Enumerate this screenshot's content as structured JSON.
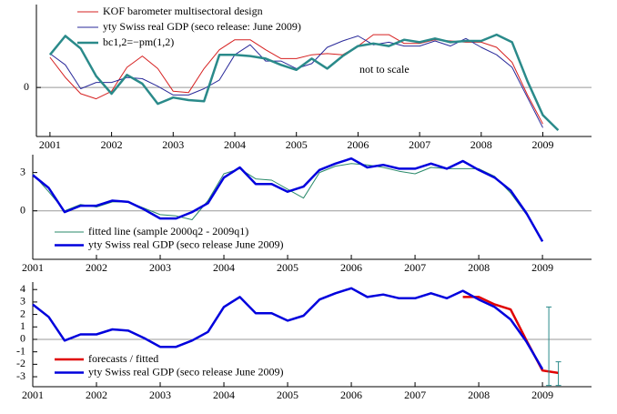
{
  "chart_data": [
    {
      "type": "line",
      "legend": "upper left",
      "zero_line": true,
      "annotation": "not to scale",
      "x": [
        2001,
        2001.25,
        2001.5,
        2001.75,
        2002,
        2002.25,
        2002.5,
        2002.75,
        2003,
        2003.25,
        2003.5,
        2003.75,
        2004,
        2004.25,
        2004.5,
        2004.75,
        2005,
        2005.25,
        2005.5,
        2005.75,
        2006,
        2006.25,
        2006.5,
        2006.75,
        2007,
        2007.25,
        2007.5,
        2007.75,
        2008,
        2008.25,
        2008.5,
        2008.75,
        2009,
        2009.25
      ],
      "series": [
        {
          "name": "KOF barometer multisectoral design",
          "color": "#d62020",
          "width": 1,
          "values": [
            2.4,
            0.8,
            -0.5,
            -0.9,
            -0.3,
            1.6,
            2.5,
            1.5,
            -0.3,
            -0.4,
            1.5,
            3.0,
            3.8,
            3.8,
            3.0,
            2.3,
            2.3,
            2.6,
            2.7,
            2.6,
            3.3,
            4.2,
            4.2,
            3.5,
            3.5,
            3.8,
            3.7,
            3.6,
            3.6,
            3.2,
            2.0,
            -0.6,
            -2.9,
            null
          ]
        },
        {
          "name": "yty Swiss real GDP (seco release: June 2009)",
          "color": "#2a2a9a",
          "width": 1,
          "values": [
            2.7,
            1.8,
            -0.1,
            0.4,
            0.4,
            0.8,
            0.7,
            0.1,
            -0.6,
            -0.6,
            -0.1,
            0.6,
            2.6,
            3.4,
            2.1,
            2.1,
            1.5,
            1.9,
            3.2,
            3.7,
            4.1,
            3.4,
            3.6,
            3.3,
            3.3,
            3.7,
            3.3,
            3.9,
            3.2,
            2.6,
            1.6,
            -0.8,
            -3.2,
            null
          ]
        },
        {
          "name": "bc1,2=−pm(1,2)",
          "color": "#2a8a8a",
          "width": 2.5,
          "values": [
            2.6,
            4.1,
            3.1,
            0.9,
            -0.5,
            1.0,
            0.3,
            -1.3,
            -0.8,
            -1.0,
            -1.1,
            2.6,
            2.6,
            2.5,
            2.3,
            1.8,
            1.4,
            2.3,
            1.5,
            2.5,
            3.3,
            3.5,
            3.3,
            3.8,
            3.6,
            3.9,
            3.6,
            3.7,
            3.7,
            4.2,
            3.6,
            0.5,
            -2.2,
            -3.4
          ]
        }
      ],
      "xlim": [
        2000.78,
        2009.79
      ],
      "ylim": [
        -3.9,
        6.6
      ],
      "xticks": [
        2001,
        2002,
        2003,
        2004,
        2005,
        2006,
        2007,
        2008,
        2009
      ],
      "yticks": [
        0
      ]
    },
    {
      "type": "line",
      "legend": "lower left",
      "zero_line": true,
      "x": [
        2001,
        2001.25,
        2001.5,
        2001.75,
        2002,
        2002.25,
        2002.5,
        2002.75,
        2003,
        2003.25,
        2003.5,
        2003.75,
        2004,
        2004.25,
        2004.5,
        2004.75,
        2005,
        2005.25,
        2005.5,
        2005.75,
        2006,
        2006.25,
        2006.5,
        2006.75,
        2007,
        2007.25,
        2007.5,
        2007.75,
        2008,
        2008.25,
        2008.5,
        2008.75,
        2009
      ],
      "series": [
        {
          "name": "fitted line (sample 2000q2 - 2009q1)",
          "color": "#2a8a6a",
          "width": 1,
          "values": [
            2.9,
            1.5,
            0,
            0.5,
            0.3,
            0.7,
            0.7,
            0.2,
            -0.3,
            -0.4,
            -0.7,
            0.8,
            2.9,
            3.3,
            2.5,
            2.4,
            1.7,
            1.0,
            3.0,
            3.5,
            3.7,
            3.6,
            3.4,
            3.1,
            2.9,
            3.4,
            3.3,
            3.3,
            3.3,
            2.7,
            1.4,
            -0.3,
            null
          ]
        },
        {
          "name": "yty Swiss real GDP (seco release June 2009)",
          "color": "#0000dd",
          "width": 2.5,
          "values": [
            2.8,
            1.8,
            -0.1,
            0.4,
            0.4,
            0.8,
            0.7,
            0.1,
            -0.6,
            -0.6,
            -0.1,
            0.6,
            2.6,
            3.4,
            2.1,
            2.1,
            1.5,
            1.9,
            3.2,
            3.7,
            4.1,
            3.4,
            3.6,
            3.3,
            3.3,
            3.7,
            3.3,
            3.9,
            3.2,
            2.6,
            1.6,
            -0.2,
            -2.4
          ]
        }
      ],
      "xlim": [
        2001,
        2009.77
      ],
      "ylim": [
        -3.8,
        4.4
      ],
      "xticks": [
        2001,
        2002,
        2003,
        2004,
        2005,
        2006,
        2007,
        2008,
        2009
      ],
      "yticks": [
        0,
        3
      ]
    },
    {
      "type": "line",
      "legend": "lower left",
      "zero_line": true,
      "x": [
        2001,
        2001.25,
        2001.5,
        2001.75,
        2002,
        2002.25,
        2002.5,
        2002.75,
        2003,
        2003.25,
        2003.5,
        2003.75,
        2004,
        2004.25,
        2004.5,
        2004.75,
        2005,
        2005.25,
        2005.5,
        2005.75,
        2006,
        2006.25,
        2006.5,
        2006.75,
        2007,
        2007.25,
        2007.5,
        2007.75,
        2008,
        2008.25,
        2008.5,
        2008.75,
        2009
      ],
      "series": [
        {
          "name": "forecasts / fitted",
          "color": "#e00000",
          "width": 2.5,
          "x": [
            2007.75,
            2008,
            2008.25,
            2008.5,
            2008.75,
            2009,
            2009.25
          ],
          "values": [
            3.4,
            3.4,
            2.8,
            2.4,
            -0.1,
            -2.5,
            -2.7
          ]
        },
        {
          "name": "yty Swiss real GDP (seco release June 2009)",
          "color": "#0000dd",
          "width": 2.5,
          "values": [
            2.8,
            1.8,
            -0.1,
            0.4,
            0.4,
            0.8,
            0.7,
            0.1,
            -0.6,
            -0.6,
            -0.1,
            0.6,
            2.6,
            3.4,
            2.1,
            2.1,
            1.5,
            1.9,
            3.2,
            3.7,
            4.1,
            3.4,
            3.6,
            3.3,
            3.3,
            3.7,
            3.3,
            3.9,
            3.2,
            2.6,
            1.6,
            -0.2,
            -2.4
          ]
        }
      ],
      "error_bars": {
        "color": "#2a8a8a",
        "x": [
          2009.1,
          2009.25
        ],
        "high": [
          2.6,
          -1.8
        ],
        "low": [
          -3.7,
          -3.7
        ]
      },
      "xlim": [
        2001,
        2009.77
      ],
      "ylim": [
        -3.8,
        4.6
      ],
      "xticks": [
        2001,
        2002,
        2003,
        2004,
        2005,
        2006,
        2007,
        2008,
        2009
      ],
      "yticks": [
        -3,
        -2,
        -1,
        0,
        1,
        2,
        3,
        4
      ]
    }
  ]
}
